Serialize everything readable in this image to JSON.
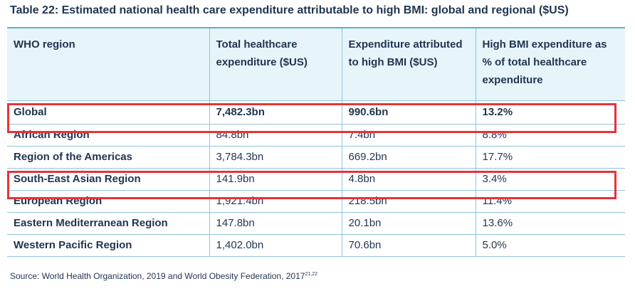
{
  "title": "Table 22: Estimated national health care expenditure attributable to high BMI: global and regional ($US)",
  "table": {
    "headers": [
      "WHO region",
      "Total healthcare expenditure ($US)",
      "Expenditure attributed to high BMI ($US)",
      "High BMI expenditure as % of total healthcare expenditure"
    ],
    "rows": [
      [
        "Global",
        "7,482.3bn",
        "990.6bn",
        "13.2%"
      ],
      [
        "African Region",
        "84.8bn",
        "7.4bn",
        "8.8%"
      ],
      [
        "Region of the Americas",
        "3,784.3bn",
        "669.2bn",
        "17.7%"
      ],
      [
        "South-East Asian Region",
        "141.9bn",
        "4.8bn",
        "3.4%"
      ],
      [
        "European Region",
        "1,921.4bn",
        "218.5bn",
        "11.4%"
      ],
      [
        "Eastern Mediterranean Region",
        "147.8bn",
        "20.1bn",
        "13.6%"
      ],
      [
        "Western Pacific Region",
        "1,402.0bn",
        "70.6bn",
        "5.0%"
      ]
    ]
  },
  "source": {
    "text": "Source: World Health Organization, 2019 and World Obesity Federation, 2017",
    "refs": "21,22"
  },
  "highlight_color": "#e8323a",
  "header_bg": "#e7f4f9",
  "text_color": "#1f3550"
}
